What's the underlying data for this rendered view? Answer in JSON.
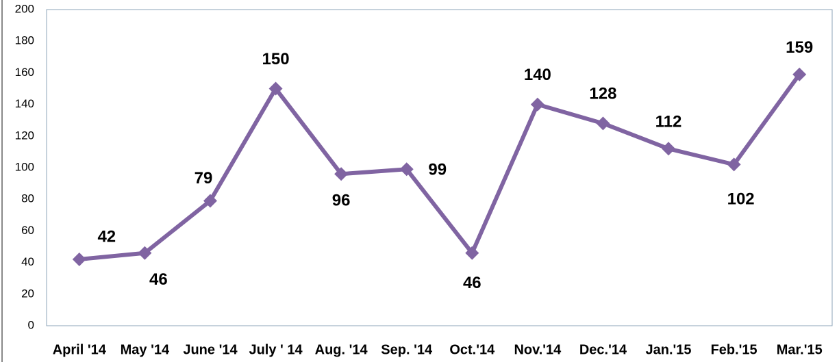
{
  "chart_data": {
    "type": "line",
    "categories": [
      "April '14",
      "May '14",
      "June '14",
      "July ' 14",
      "Aug. '14",
      "Sep. '14",
      "Oct.'14",
      "Nov.'14",
      "Dec.'14",
      "Jan.'15",
      "Feb.'15",
      "Mar.'15"
    ],
    "series": [
      {
        "color": "#8064a2",
        "values": [
          42,
          46,
          79,
          150,
          96,
          99,
          46,
          140,
          128,
          112,
          102,
          159
        ]
      }
    ],
    "ylim": [
      0,
      200
    ],
    "yticks": [
      0,
      20,
      40,
      60,
      80,
      100,
      120,
      140,
      160,
      180,
      200
    ],
    "grid": false
  }
}
